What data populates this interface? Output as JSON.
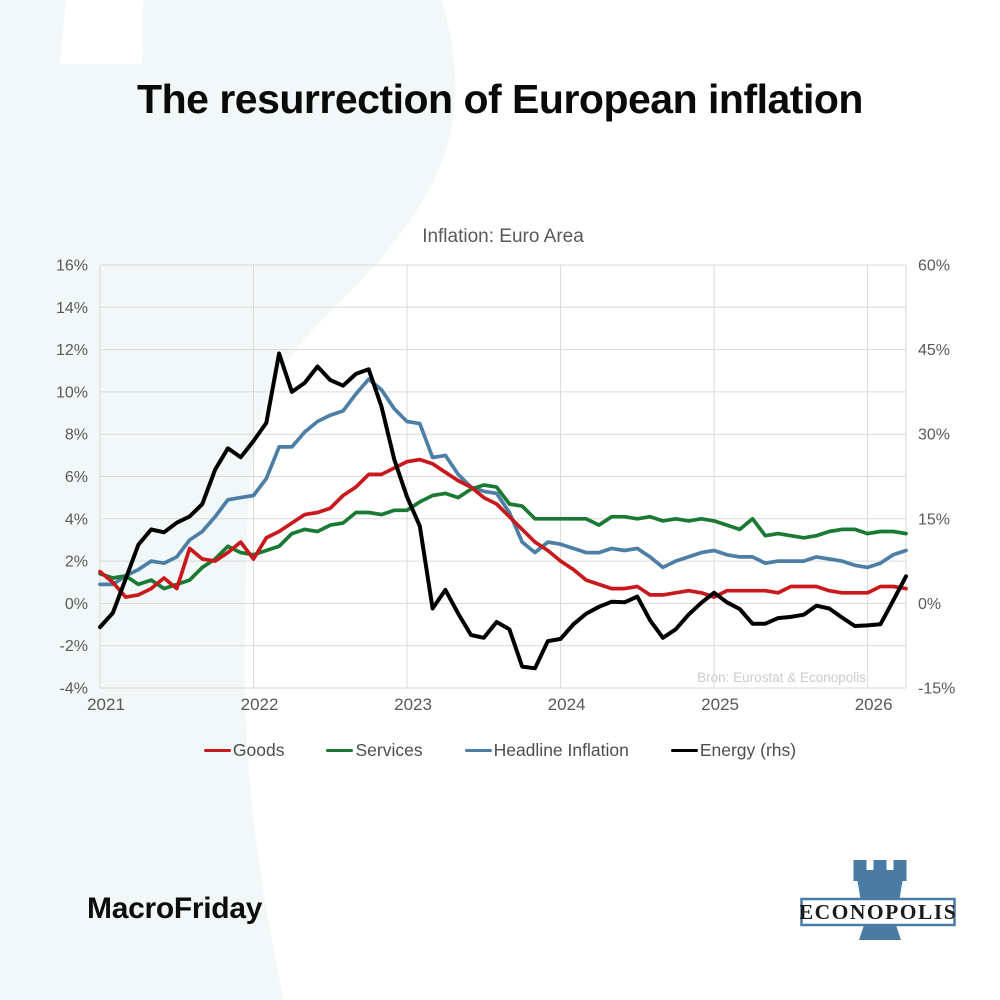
{
  "page": {
    "title": "The resurrection of European inflation",
    "footer_brand": "MacroFriday",
    "logo_text": "ECONOPOLIS"
  },
  "colors": {
    "background_tint": "#f2f8f8",
    "logo_blue": "#4a7ca3",
    "grid": "#d9d9d9",
    "axis_text": "#595959"
  },
  "chart_data": {
    "type": "line",
    "title": "Inflation: Euro Area",
    "source_note": "Bron: Eurostat & Econopolis",
    "x_start": "2021-01",
    "x_end": "2026-04",
    "x_frequency": "monthly",
    "grid": true,
    "legend_position": "bottom",
    "x_tick_labels": [
      "2021",
      "2022",
      "2023",
      "2024",
      "2025",
      "2026"
    ],
    "x_tick_month_indices": [
      0,
      12,
      24,
      36,
      48,
      60
    ],
    "left_axis": {
      "min": -4,
      "max": 16,
      "step": 2,
      "unit": "%",
      "ticks": [
        {
          "value": 16,
          "label": "16%"
        },
        {
          "value": 14,
          "label": "14%"
        },
        {
          "value": 12,
          "label": "12%"
        },
        {
          "value": 10,
          "label": "10%"
        },
        {
          "value": 8,
          "label": "8%"
        },
        {
          "value": 6,
          "label": "6%"
        },
        {
          "value": 4,
          "label": "4%"
        },
        {
          "value": 2,
          "label": "2%"
        },
        {
          "value": 0,
          "label": "0%"
        },
        {
          "value": -2,
          "label": "-2%"
        },
        {
          "value": -4,
          "label": "-4%"
        }
      ]
    },
    "right_axis": {
      "min": -15,
      "max": 60,
      "step": 15,
      "unit": "%",
      "ticks": [
        {
          "value": 60,
          "label": "60%"
        },
        {
          "value": 45,
          "label": "45%"
        },
        {
          "value": 30,
          "label": "30%"
        },
        {
          "value": 15,
          "label": "15%"
        },
        {
          "value": 0,
          "label": "0%"
        },
        {
          "value": -15,
          "label": "-15%"
        }
      ]
    },
    "series": [
      {
        "name": "Goods",
        "color": "#c8191d",
        "axis": "left",
        "values": [
          1.5,
          1.0,
          0.3,
          0.4,
          0.7,
          1.2,
          0.7,
          2.6,
          2.1,
          2.0,
          2.4,
          2.9,
          2.1,
          3.1,
          3.4,
          3.8,
          4.2,
          4.3,
          4.5,
          5.1,
          5.5,
          6.1,
          6.1,
          6.4,
          6.7,
          6.8,
          6.6,
          6.2,
          5.8,
          5.5,
          5.0,
          4.7,
          4.1,
          3.5,
          2.9,
          2.5,
          2.0,
          1.6,
          1.1,
          0.9,
          0.7,
          0.7,
          0.8,
          0.4,
          0.4,
          0.5,
          0.6,
          0.5,
          0.3,
          0.6,
          0.6,
          0.6,
          0.6,
          0.5,
          0.8,
          0.8,
          0.8,
          0.6,
          0.5,
          0.5,
          0.5,
          0.8,
          0.8,
          0.7
        ]
      },
      {
        "name": "Services",
        "color": "#1a7a33",
        "axis": "left",
        "values": [
          1.4,
          1.2,
          1.3,
          0.9,
          1.1,
          0.7,
          0.9,
          1.1,
          1.7,
          2.1,
          2.7,
          2.4,
          2.3,
          2.5,
          2.7,
          3.3,
          3.5,
          3.4,
          3.7,
          3.8,
          4.3,
          4.3,
          4.2,
          4.4,
          4.4,
          4.8,
          5.1,
          5.2,
          5.0,
          5.4,
          5.6,
          5.5,
          4.7,
          4.6,
          4.0,
          4.0,
          4.0,
          4.0,
          4.0,
          3.7,
          4.1,
          4.1,
          4.0,
          4.1,
          3.9,
          4.0,
          3.9,
          4.0,
          3.9,
          3.7,
          3.5,
          4.0,
          3.2,
          3.3,
          3.2,
          3.1,
          3.2,
          3.4,
          3.5,
          3.5,
          3.3,
          3.4,
          3.4,
          3.3
        ]
      },
      {
        "name": "Headline Inflation",
        "color": "#4d7fa6",
        "axis": "left",
        "values": [
          0.9,
          0.9,
          1.3,
          1.6,
          2.0,
          1.9,
          2.2,
          3.0,
          3.4,
          4.1,
          4.9,
          5.0,
          5.1,
          5.9,
          7.4,
          7.4,
          8.1,
          8.6,
          8.9,
          9.1,
          9.9,
          10.6,
          10.1,
          9.2,
          8.6,
          8.5,
          6.9,
          7.0,
          6.1,
          5.5,
          5.3,
          5.2,
          4.3,
          2.9,
          2.4,
          2.9,
          2.8,
          2.6,
          2.4,
          2.4,
          2.6,
          2.5,
          2.6,
          2.2,
          1.7,
          2.0,
          2.2,
          2.4,
          2.5,
          2.3,
          2.2,
          2.2,
          1.9,
          2.0,
          2.0,
          2.0,
          2.2,
          2.1,
          2.0,
          1.8,
          1.7,
          1.9,
          2.3,
          2.5
        ]
      },
      {
        "name": "Energy (rhs)",
        "color": "#000000",
        "axis": "right",
        "values": [
          -4.2,
          -1.7,
          4.3,
          10.4,
          13.1,
          12.6,
          14.3,
          15.4,
          17.6,
          23.7,
          27.5,
          25.9,
          28.8,
          32.0,
          44.3,
          37.5,
          39.1,
          42.0,
          39.6,
          38.6,
          40.7,
          41.5,
          34.9,
          25.5,
          18.9,
          13.7,
          -0.9,
          2.4,
          -1.8,
          -5.6,
          -6.1,
          -3.3,
          -4.6,
          -11.2,
          -11.5,
          -6.7,
          -6.3,
          -3.7,
          -1.8,
          -0.6,
          0.3,
          0.2,
          1.2,
          -3.0,
          -6.1,
          -4.6,
          -2.0,
          0.1,
          1.9,
          0.2,
          -1.0,
          -3.6,
          -3.6,
          -2.6,
          -2.4,
          -2.0,
          -0.4,
          -0.9,
          -2.5,
          -4.0,
          -3.9,
          -3.7,
          0.5,
          4.8
        ]
      }
    ]
  }
}
